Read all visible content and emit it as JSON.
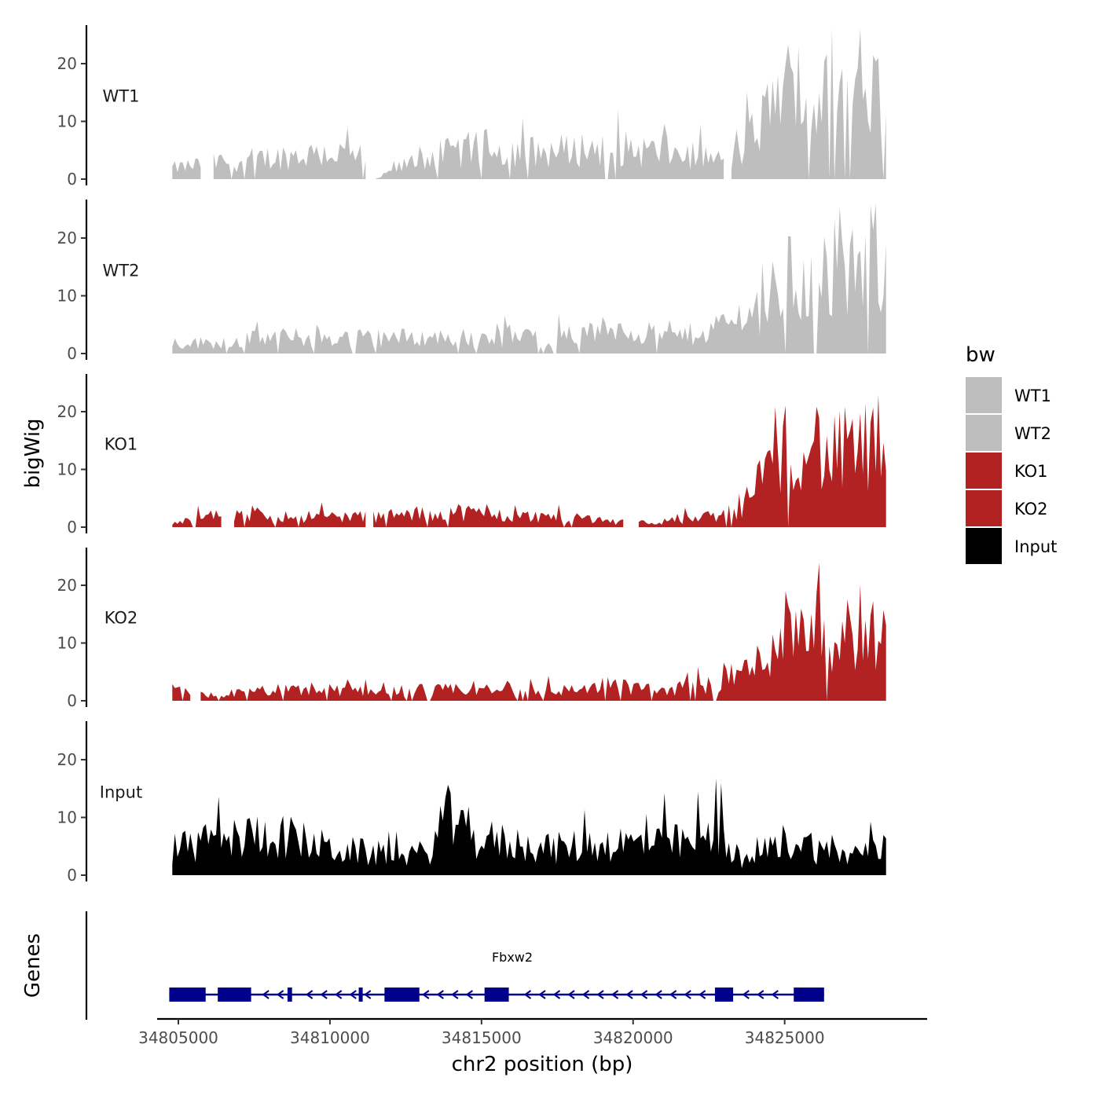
{
  "chart_data": {
    "type": "area",
    "title": "",
    "xlabel": "chr2 position (bp)",
    "ylabel": "bigWig",
    "genes_ylabel": "Genes",
    "xlim": [
      34804300,
      34829700
    ],
    "ylim": [
      0,
      27
    ],
    "x_ticks": [
      34805000,
      34810000,
      34815000,
      34820000,
      34825000
    ],
    "x_tick_labels": [
      "34805000",
      "34810000",
      "34815000",
      "34820000",
      "34825000"
    ],
    "y_ticks": [
      0,
      10,
      20
    ],
    "y_tick_labels": [
      "0",
      "10",
      "20"
    ],
    "region": [
      34804800,
      34828400
    ],
    "legend": {
      "title": "bw",
      "entries": [
        {
          "label": "WT1",
          "color": "#bebebe"
        },
        {
          "label": "WT2",
          "color": "#bebebe"
        },
        {
          "label": "KO1",
          "color": "#b22222"
        },
        {
          "label": "KO2",
          "color": "#b22222"
        },
        {
          "label": "Input",
          "color": "#000000"
        }
      ]
    },
    "series": [
      {
        "name": "WT1",
        "color": "#bebebe",
        "profile": [
          [
            34804800,
            2
          ],
          [
            34806000,
            3
          ],
          [
            34808000,
            4
          ],
          [
            34810000,
            5
          ],
          [
            34811200,
            4
          ],
          [
            34811300,
            0
          ],
          [
            34811500,
            0
          ],
          [
            34813000,
            4
          ],
          [
            34815000,
            6
          ],
          [
            34817000,
            5
          ],
          [
            34819000,
            6
          ],
          [
            34821000,
            5
          ],
          [
            34822500,
            4
          ],
          [
            34823200,
            3
          ],
          [
            34823800,
            7
          ],
          [
            34824300,
            11
          ],
          [
            34825000,
            17
          ],
          [
            34826000,
            14
          ],
          [
            34827000,
            17
          ],
          [
            34828000,
            18
          ],
          [
            34828400,
            16
          ]
        ],
        "gaps": [
          [
            34805800,
            34806100
          ],
          [
            34811200,
            34811500
          ],
          [
            34823000,
            34823200
          ]
        ]
      },
      {
        "name": "WT2",
        "color": "#bebebe",
        "profile": [
          [
            34804800,
            2
          ],
          [
            34806000,
            2
          ],
          [
            34808000,
            3
          ],
          [
            34810000,
            3
          ],
          [
            34812000,
            3
          ],
          [
            34814000,
            3
          ],
          [
            34816000,
            3
          ],
          [
            34818000,
            3
          ],
          [
            34819500,
            5
          ],
          [
            34821000,
            3
          ],
          [
            34822500,
            4
          ],
          [
            34823600,
            7
          ],
          [
            34824300,
            9
          ],
          [
            34825200,
            15
          ],
          [
            34826000,
            12
          ],
          [
            34827000,
            13
          ],
          [
            34828000,
            19
          ],
          [
            34828400,
            14
          ]
        ],
        "gaps": []
      },
      {
        "name": "KO1",
        "color": "#b22222",
        "profile": [
          [
            34804800,
            1
          ],
          [
            34806000,
            2
          ],
          [
            34808000,
            2
          ],
          [
            34810000,
            2
          ],
          [
            34812000,
            2
          ],
          [
            34814000,
            3
          ],
          [
            34816000,
            2
          ],
          [
            34818000,
            2
          ],
          [
            34819600,
            1
          ],
          [
            34821000,
            1
          ],
          [
            34822500,
            2
          ],
          [
            34823600,
            3
          ],
          [
            34824100,
            9
          ],
          [
            34824800,
            13
          ],
          [
            34825600,
            18
          ],
          [
            34826500,
            13
          ],
          [
            34827500,
            15
          ],
          [
            34828400,
            13
          ]
        ],
        "gaps": [
          [
            34806500,
            34806800
          ],
          [
            34811200,
            34811400
          ],
          [
            34819700,
            34820100
          ]
        ]
      },
      {
        "name": "KO2",
        "color": "#b22222",
        "profile": [
          [
            34804800,
            2
          ],
          [
            34806000,
            1
          ],
          [
            34808000,
            2
          ],
          [
            34810000,
            2
          ],
          [
            34812000,
            2
          ],
          [
            34814000,
            2
          ],
          [
            34816000,
            2
          ],
          [
            34818000,
            2
          ],
          [
            34819500,
            3
          ],
          [
            34821000,
            2
          ],
          [
            34822500,
            3
          ],
          [
            34823200,
            5
          ],
          [
            34824000,
            6
          ],
          [
            34824800,
            13
          ],
          [
            34825700,
            16
          ],
          [
            34826700,
            12
          ],
          [
            34827500,
            14
          ],
          [
            34828400,
            11
          ]
        ],
        "gaps": [
          [
            34805400,
            34805700
          ]
        ]
      },
      {
        "name": "Input",
        "color": "#000000",
        "profile": [
          [
            34804800,
            5
          ],
          [
            34806000,
            6
          ],
          [
            34808000,
            8
          ],
          [
            34810000,
            5
          ],
          [
            34811500,
            4
          ],
          [
            34813200,
            4
          ],
          [
            34813800,
            11
          ],
          [
            34814500,
            7
          ],
          [
            34816000,
            6
          ],
          [
            34817500,
            5
          ],
          [
            34819000,
            6
          ],
          [
            34820500,
            6
          ],
          [
            34822000,
            6
          ],
          [
            34823000,
            8
          ],
          [
            34823600,
            2
          ],
          [
            34824500,
            5
          ],
          [
            34825300,
            7
          ],
          [
            34826500,
            4
          ],
          [
            34827500,
            4
          ],
          [
            34828400,
            5
          ]
        ],
        "gaps": []
      }
    ],
    "gene": {
      "name": "Fbxw2",
      "start": 34804700,
      "end": 34826300,
      "strand": "-",
      "color": "#00008b",
      "exons": [
        [
          34804700,
          34805900
        ],
        [
          34806300,
          34807400
        ],
        [
          34808600,
          34808750
        ],
        [
          34810950,
          34811080
        ],
        [
          34811800,
          34812950
        ],
        [
          34815100,
          34815900
        ],
        [
          34822700,
          34823300
        ],
        [
          34825300,
          34826300
        ]
      ]
    }
  }
}
